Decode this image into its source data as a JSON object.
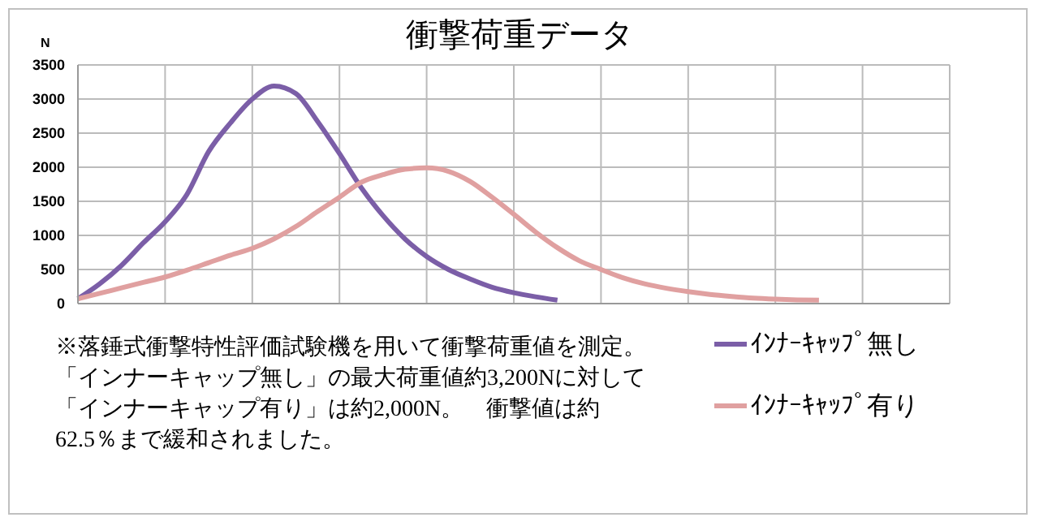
{
  "chart_data": {
    "type": "line",
    "title": "衝撃荷重データ",
    "ylabel": "N",
    "categories": [
      null,
      null,
      null,
      null,
      null,
      null,
      null,
      null,
      null,
      null,
      null,
      null,
      null,
      null,
      null,
      null,
      null,
      null,
      null,
      null,
      null,
      null,
      null,
      null,
      null,
      null,
      null,
      null,
      null,
      null,
      null,
      null,
      null,
      null,
      null,
      null,
      null,
      null,
      null,
      null,
      null
    ],
    "ylim": [
      0,
      3500
    ],
    "yticks": [
      0,
      500,
      1000,
      1500,
      2000,
      2500,
      3000,
      3500
    ],
    "tick_labels": "y",
    "grid": true,
    "legend": "bottom right",
    "marker": "none",
    "line_style": "solid",
    "series": [
      {
        "name": "ｲﾝﾅｰｷｬｯﾌﾟ無し",
        "color": "#7b5ea7",
        "values": [
          70,
          290,
          560,
          890,
          1200,
          1600,
          2230,
          2650,
          3000,
          3190,
          3080,
          2670,
          2200,
          1700,
          1290,
          950,
          690,
          500,
          360,
          240,
          160,
          100,
          50,
          null,
          null,
          null,
          null,
          null,
          null,
          null,
          null,
          null,
          null,
          null,
          null,
          null,
          null,
          null,
          null,
          null,
          null
        ]
      },
      {
        "name": "ｲﾝﾅｰｷｬｯﾌﾟ有り",
        "color": "#e0a0a0",
        "values": [
          70,
          150,
          230,
          310,
          390,
          490,
          600,
          710,
          810,
          950,
          1130,
          1350,
          1560,
          1780,
          1890,
          1970,
          1990,
          1940,
          1790,
          1560,
          1310,
          1050,
          820,
          630,
          500,
          380,
          290,
          225,
          175,
          135,
          105,
          80,
          65,
          55,
          50,
          null,
          null,
          null,
          null,
          null,
          null
        ]
      }
    ],
    "annotations": [
      "※落錘式衝撃特性評価試験機を用いて衝撃荷重値を測定。「インナーキャップ無し」の最大荷重値約3,200Nに対して「インナーキャップ有り」は約2,000N。　衝撃値は約62.5％まで緩和されました。"
    ]
  }
}
